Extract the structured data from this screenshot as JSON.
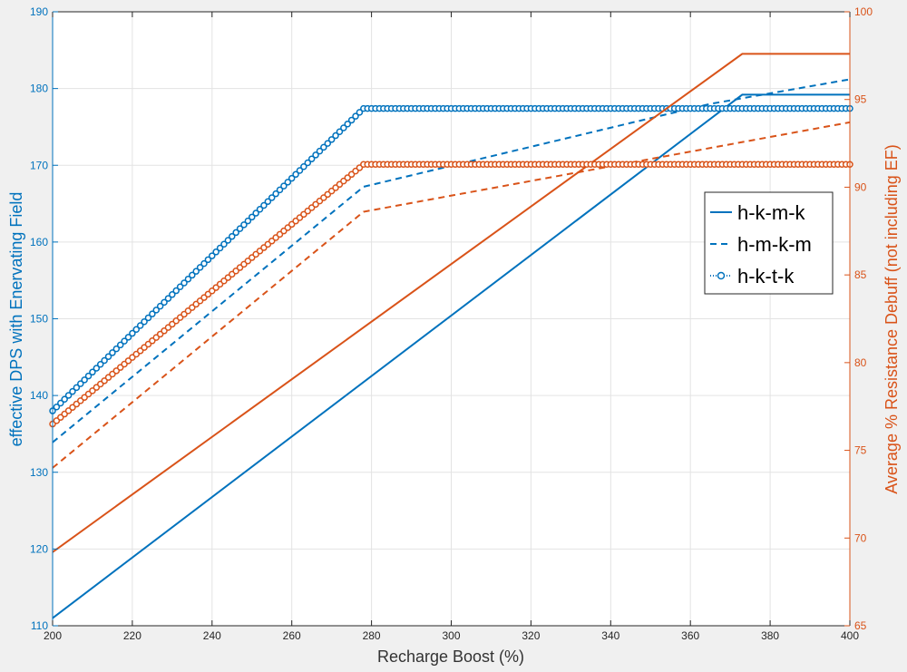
{
  "chart_data": {
    "type": "line",
    "x_axis": {
      "label": "Recharge Boost (%)",
      "range": [
        200,
        400
      ],
      "ticks": [
        200,
        220,
        240,
        260,
        280,
        300,
        320,
        340,
        360,
        380,
        400
      ]
    },
    "y_left": {
      "label": "effective DPS with Enervating Field",
      "range": [
        110,
        190
      ],
      "ticks": [
        110,
        120,
        130,
        140,
        150,
        160,
        170,
        180,
        190
      ],
      "color": "#0072BD"
    },
    "y_right": {
      "label": "Average % Resistance Debuff (not including EF)",
      "range": [
        65,
        100
      ],
      "ticks": [
        65,
        70,
        75,
        80,
        85,
        90,
        95,
        100
      ],
      "color": "#D95319"
    },
    "grid": true,
    "legend": {
      "position": "right",
      "entries": [
        {
          "label": "h-k-m-k",
          "style": "solid"
        },
        {
          "label": "h-m-k-m",
          "style": "dashed"
        },
        {
          "label": "h-k-t-k",
          "style": "dotted-circle"
        }
      ]
    },
    "series": [
      {
        "name": "h-k-m-k",
        "axis": "left",
        "color": "#0072BD",
        "style": "solid",
        "x": [
          200,
          373,
          400
        ],
        "y": [
          111.0,
          179.2,
          179.2
        ]
      },
      {
        "name": "h-m-k-m",
        "axis": "left",
        "color": "#0072BD",
        "style": "dashed",
        "x": [
          200,
          278,
          365,
          400
        ],
        "y": [
          133.9,
          167.2,
          178.0,
          181.2
        ]
      },
      {
        "name": "h-k-t-k",
        "axis": "left",
        "color": "#0072BD",
        "style": "dotted-circle",
        "x": [
          200,
          278,
          400
        ],
        "y": [
          138.0,
          177.4,
          177.4
        ]
      },
      {
        "name": "h-k-m-k",
        "axis": "right",
        "color": "#D95319",
        "style": "solid",
        "x": [
          200,
          373,
          400
        ],
        "y": [
          69.2,
          97.6,
          97.6
        ]
      },
      {
        "name": "h-m-k-m",
        "axis": "right",
        "color": "#D95319",
        "style": "dashed",
        "x": [
          200,
          278,
          400
        ],
        "y": [
          74.0,
          88.6,
          93.7
        ]
      },
      {
        "name": "h-k-t-k",
        "axis": "right",
        "color": "#D95319",
        "style": "dotted-circle",
        "x": [
          200,
          278,
          400
        ],
        "y": [
          76.5,
          91.3,
          91.3
        ]
      }
    ]
  }
}
